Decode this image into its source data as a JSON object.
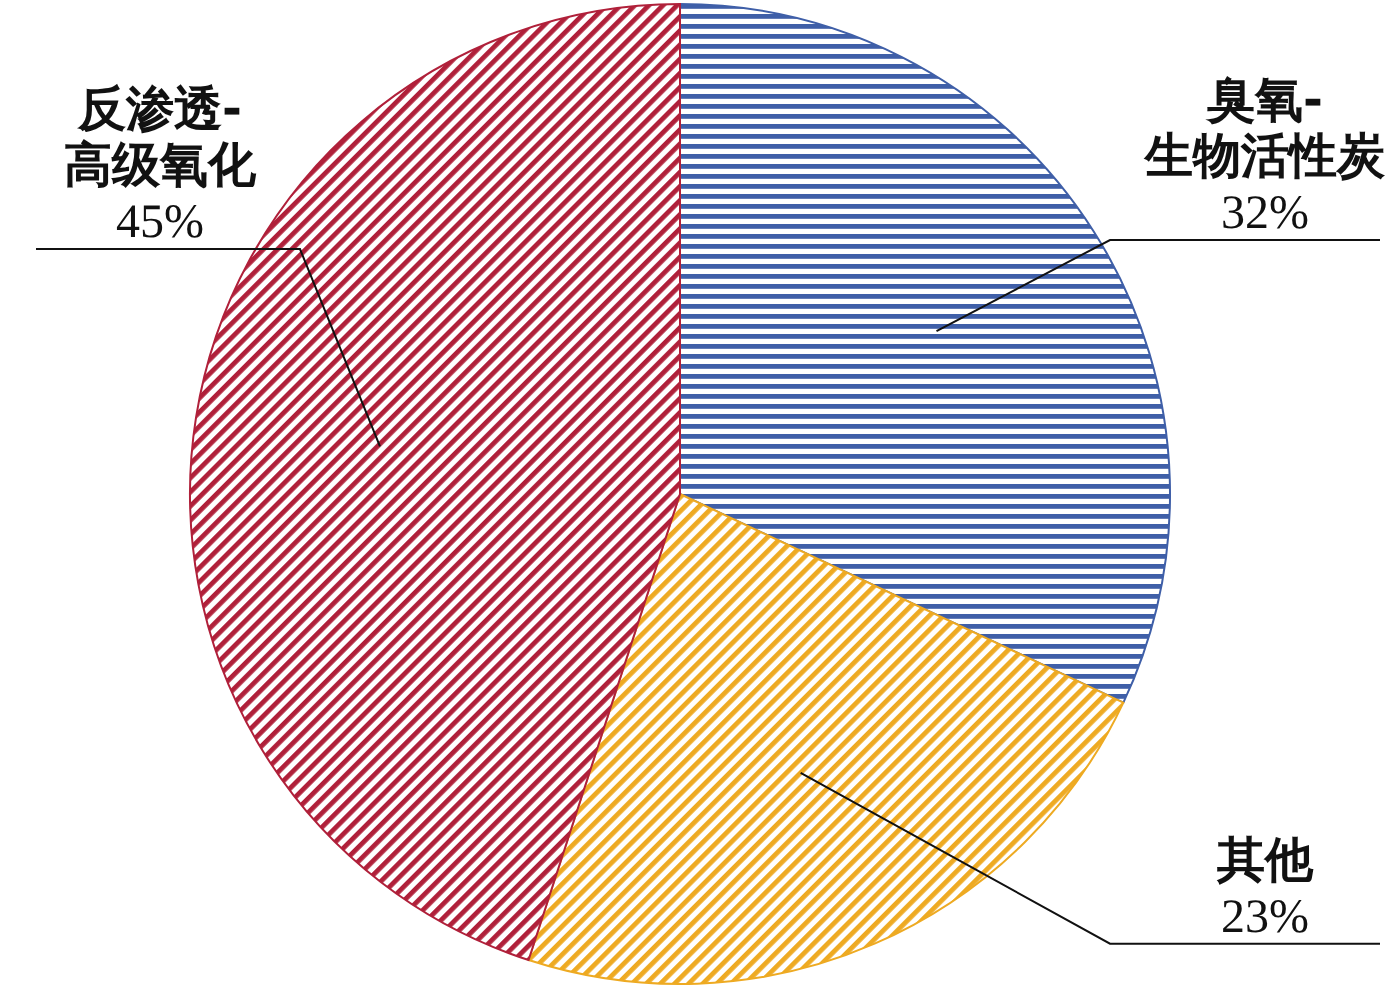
{
  "chart_data": {
    "type": "pie",
    "categories": [
      "臭氧-生物活性炭",
      "其他",
      "反渗透-高级氧化"
    ],
    "values": [
      32,
      23,
      45
    ],
    "colors": [
      "#3f5fa8",
      "#eeaa22",
      "#b0203a"
    ],
    "value_labels": [
      "32%",
      "23%",
      "45%"
    ],
    "legend": false
  }
}
